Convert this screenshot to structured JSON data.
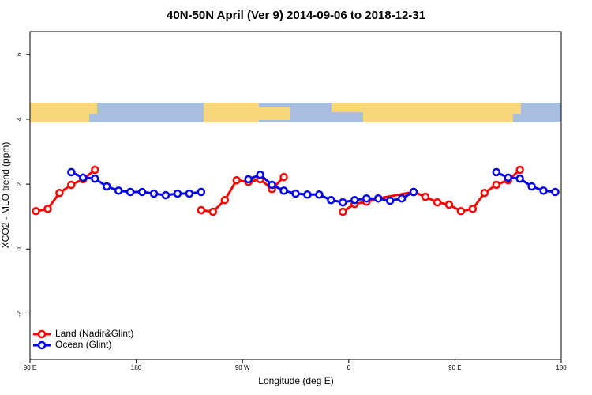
{
  "chart_data": {
    "type": "line",
    "title": "40N-50N April (Ver 9)   2014-09-06 to 2018-12-31",
    "xlabel": "Longitude (deg E)",
    "ylabel": "XCO2 - MLO trend (ppm)",
    "xlim": [
      90,
      540
    ],
    "xticks": [
      {
        "value": 90,
        "label": "90 E"
      },
      180,
      {
        "value": 270,
        "label": "90 W"
      },
      {
        "value": 360,
        "label": "0"
      },
      {
        "value": 450,
        "label": "90 E"
      },
      {
        "value": 540,
        "label": "180"
      }
    ],
    "ylim": [
      -3.4,
      6.7
    ],
    "yticks": [
      -2,
      0,
      2,
      4,
      6
    ],
    "grid": false,
    "legend": "bottom-left",
    "series": [
      {
        "name": "Land (Nadir&Glint)",
        "color": "#ff0000",
        "x": [
          95,
          105,
          115,
          125,
          135,
          145,
          null,
          235,
          245,
          255,
          265,
          275,
          285,
          295,
          305,
          null,
          355,
          365,
          375,
          385,
          415,
          425,
          435,
          445,
          455,
          465,
          475,
          485,
          495,
          505
        ],
        "values": [
          1.17,
          1.24,
          1.73,
          1.98,
          2.15,
          2.44,
          null,
          1.2,
          1.15,
          1.51,
          2.12,
          2.07,
          2.15,
          1.85,
          2.22,
          null,
          1.15,
          1.39,
          1.46,
          1.56,
          1.76,
          1.61,
          1.44,
          1.37,
          1.17,
          1.24,
          1.73,
          1.98,
          2.12,
          2.44
        ]
      },
      {
        "name": "Ocean (Glint)",
        "color": "#0000ee",
        "x": [
          125,
          135,
          145,
          155,
          165,
          175,
          185,
          195,
          205,
          215,
          225,
          235,
          null,
          275,
          285,
          295,
          305,
          315,
          325,
          335,
          345,
          355,
          365,
          375,
          385,
          395,
          405,
          415,
          null,
          485,
          495,
          505,
          515,
          525,
          535
        ],
        "values": [
          2.37,
          2.2,
          2.17,
          1.93,
          1.8,
          1.76,
          1.76,
          1.71,
          1.66,
          1.71,
          1.71,
          1.76,
          null,
          2.15,
          2.29,
          1.98,
          1.8,
          1.71,
          1.68,
          1.68,
          1.51,
          1.44,
          1.51,
          1.56,
          1.56,
          1.49,
          1.56,
          1.76,
          null,
          2.37,
          2.2,
          2.17,
          1.93,
          1.8,
          1.76
        ]
      }
    ]
  }
}
